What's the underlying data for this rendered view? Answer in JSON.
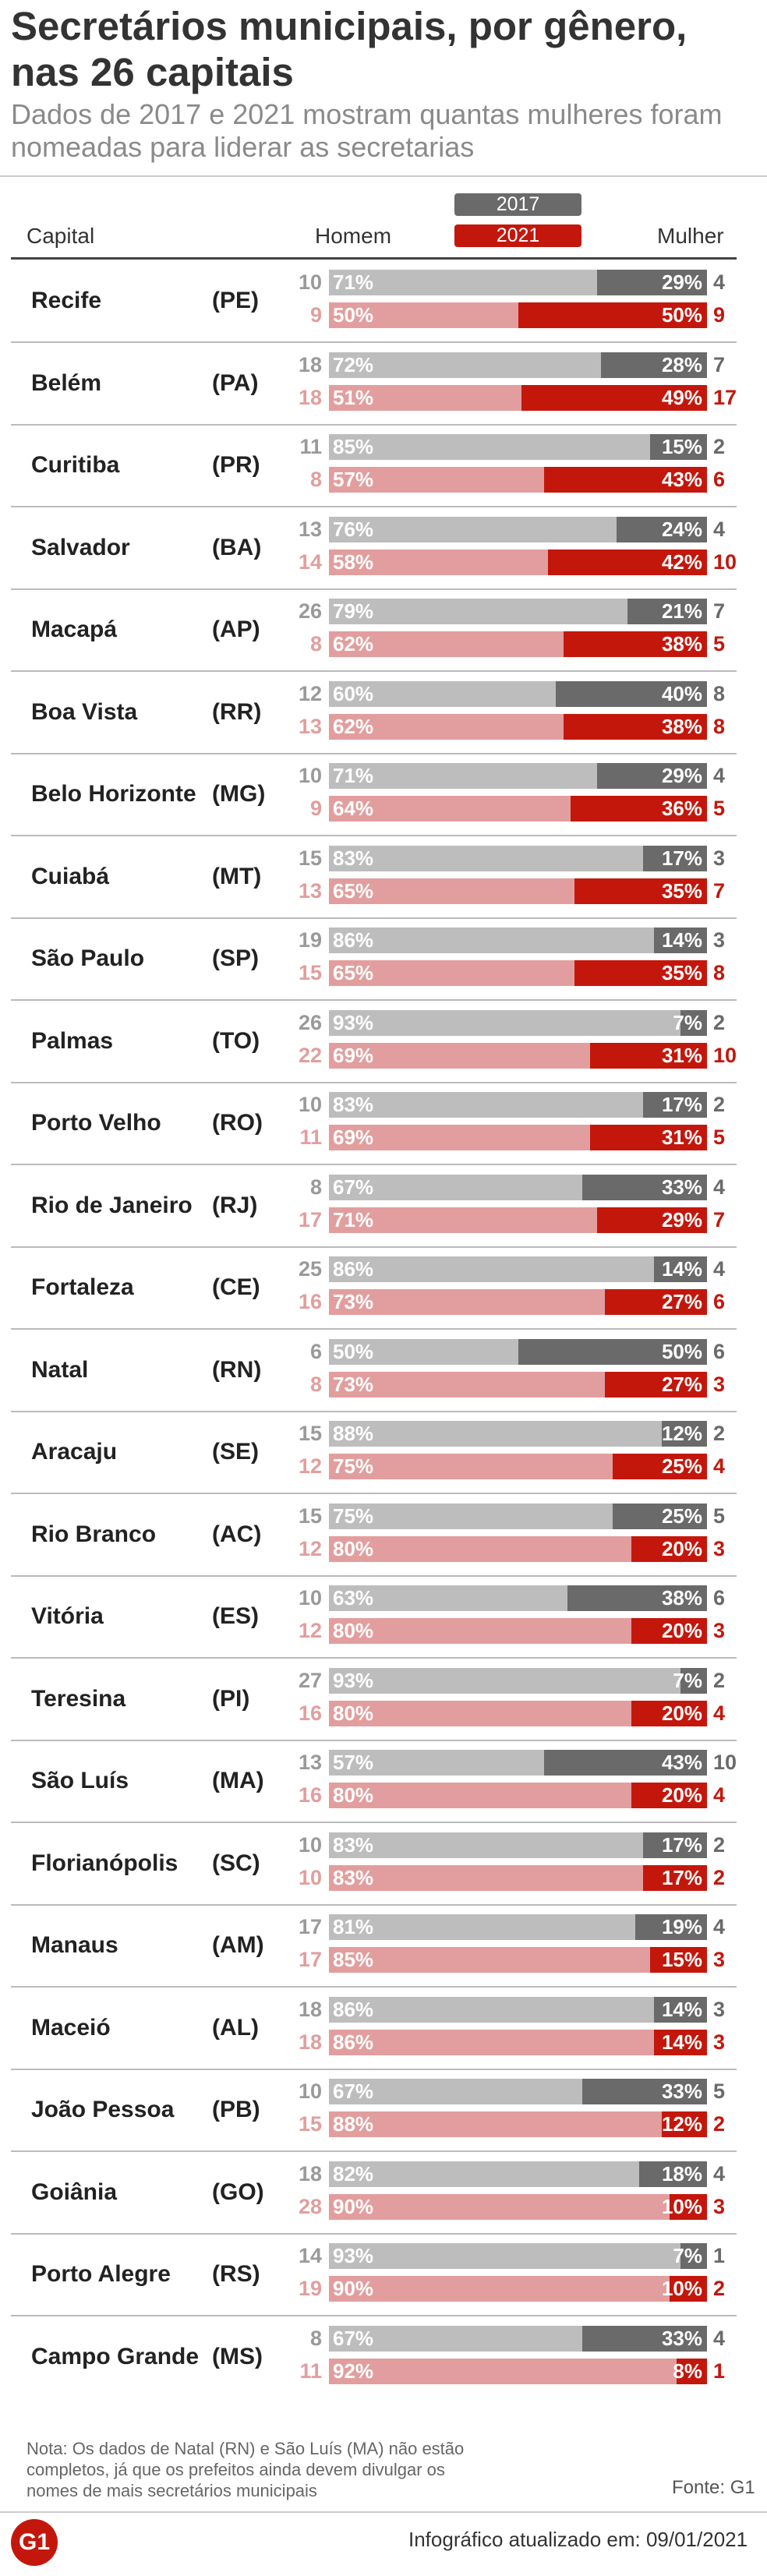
{
  "title": "Secretários municipais, por gênero, nas 26 capitais",
  "subtitle": "Dados de 2017 e 2021 mostram quantas mulheres foram nomeadas para liderar as secretarias",
  "header": {
    "capital": "Capital",
    "homem": "Homem",
    "mulher": "Mulher"
  },
  "colors": {
    "men_2017": "#bdbdbd",
    "women_2017": "#6a6a6a",
    "men_2021": "#e29e9e",
    "women_2021": "#c4170c",
    "count_2017": "#9a9a9a",
    "pct_2017_women": "#ffffff",
    "pct_2017_men": "#ffffff"
  },
  "chart_data": {
    "type": "bar",
    "orientation": "horizontal",
    "stacked": true,
    "percent": true,
    "legend": [
      "2017",
      "2021"
    ],
    "series": [
      {
        "name": "Homem"
      },
      {
        "name": "Mulher"
      }
    ],
    "rows": [
      {
        "capital": "Recife",
        "uf": "(PE)",
        "y2017": {
          "m": 10,
          "mp": "71%",
          "w": 4,
          "wp": "29%"
        },
        "y2021": {
          "m": 9,
          "mp": "50%",
          "w": 9,
          "wp": "50%"
        }
      },
      {
        "capital": "Belém",
        "uf": "(PA)",
        "y2017": {
          "m": 18,
          "mp": "72%",
          "w": 7,
          "wp": "28%"
        },
        "y2021": {
          "m": 18,
          "mp": "51%",
          "w": 17,
          "wp": "49%"
        }
      },
      {
        "capital": "Curitiba",
        "uf": "(PR)",
        "y2017": {
          "m": 11,
          "mp": "85%",
          "w": 2,
          "wp": "15%"
        },
        "y2021": {
          "m": 8,
          "mp": "57%",
          "w": 6,
          "wp": "43%"
        }
      },
      {
        "capital": "Salvador",
        "uf": "(BA)",
        "y2017": {
          "m": 13,
          "mp": "76%",
          "w": 4,
          "wp": "24%"
        },
        "y2021": {
          "m": 14,
          "mp": "58%",
          "w": 10,
          "wp": "42%"
        }
      },
      {
        "capital": "Macapá",
        "uf": "(AP)",
        "y2017": {
          "m": 26,
          "mp": "79%",
          "w": 7,
          "wp": "21%"
        },
        "y2021": {
          "m": 8,
          "mp": "62%",
          "w": 5,
          "wp": "38%"
        }
      },
      {
        "capital": "Boa Vista",
        "uf": "(RR)",
        "y2017": {
          "m": 12,
          "mp": "60%",
          "w": 8,
          "wp": "40%"
        },
        "y2021": {
          "m": 13,
          "mp": "62%",
          "w": 8,
          "wp": "38%"
        }
      },
      {
        "capital": "Belo Horizonte",
        "uf": "(MG)",
        "y2017": {
          "m": 10,
          "mp": "71%",
          "w": 4,
          "wp": "29%"
        },
        "y2021": {
          "m": 9,
          "mp": "64%",
          "w": 5,
          "wp": "36%"
        }
      },
      {
        "capital": "Cuiabá",
        "uf": "(MT)",
        "y2017": {
          "m": 15,
          "mp": "83%",
          "w": 3,
          "wp": "17%"
        },
        "y2021": {
          "m": 13,
          "mp": "65%",
          "w": 7,
          "wp": "35%"
        }
      },
      {
        "capital": "São Paulo",
        "uf": "(SP)",
        "y2017": {
          "m": 19,
          "mp": "86%",
          "w": 3,
          "wp": "14%"
        },
        "y2021": {
          "m": 15,
          "mp": "65%",
          "w": 8,
          "wp": "35%"
        }
      },
      {
        "capital": "Palmas",
        "uf": "(TO)",
        "y2017": {
          "m": 26,
          "mp": "93%",
          "w": 2,
          "wp": "7%"
        },
        "y2021": {
          "m": 22,
          "mp": "69%",
          "w": 10,
          "wp": "31%"
        }
      },
      {
        "capital": "Porto Velho",
        "uf": "(RO)",
        "y2017": {
          "m": 10,
          "mp": "83%",
          "w": 2,
          "wp": "17%"
        },
        "y2021": {
          "m": 11,
          "mp": "69%",
          "w": 5,
          "wp": "31%"
        }
      },
      {
        "capital": "Rio de Janeiro",
        "uf": "(RJ)",
        "y2017": {
          "m": 8,
          "mp": "67%",
          "w": 4,
          "wp": "33%"
        },
        "y2021": {
          "m": 17,
          "mp": "71%",
          "w": 7,
          "wp": "29%"
        }
      },
      {
        "capital": "Fortaleza",
        "uf": "(CE)",
        "y2017": {
          "m": 25,
          "mp": "86%",
          "w": 4,
          "wp": "14%"
        },
        "y2021": {
          "m": 16,
          "mp": "73%",
          "w": 6,
          "wp": "27%"
        }
      },
      {
        "capital": "Natal",
        "uf": "(RN)",
        "y2017": {
          "m": 6,
          "mp": "50%",
          "w": 6,
          "wp": "50%"
        },
        "y2021": {
          "m": 8,
          "mp": "73%",
          "w": 3,
          "wp": "27%"
        }
      },
      {
        "capital": "Aracaju",
        "uf": "(SE)",
        "y2017": {
          "m": 15,
          "mp": "88%",
          "w": 2,
          "wp": "12%"
        },
        "y2021": {
          "m": 12,
          "mp": "75%",
          "w": 4,
          "wp": "25%"
        }
      },
      {
        "capital": "Rio Branco",
        "uf": "(AC)",
        "y2017": {
          "m": 15,
          "mp": "75%",
          "w": 5,
          "wp": "25%"
        },
        "y2021": {
          "m": 12,
          "mp": "80%",
          "w": 3,
          "wp": "20%"
        }
      },
      {
        "capital": "Vitória",
        "uf": "(ES)",
        "y2017": {
          "m": 10,
          "mp": "63%",
          "w": 6,
          "wp": "38%"
        },
        "y2021": {
          "m": 12,
          "mp": "80%",
          "w": 3,
          "wp": "20%"
        }
      },
      {
        "capital": "Teresina",
        "uf": "(PI)",
        "y2017": {
          "m": 27,
          "mp": "93%",
          "w": 2,
          "wp": "7%"
        },
        "y2021": {
          "m": 16,
          "mp": "80%",
          "w": 4,
          "wp": "20%"
        }
      },
      {
        "capital": "São Luís",
        "uf": "(MA)",
        "y2017": {
          "m": 13,
          "mp": "57%",
          "w": 10,
          "wp": "43%"
        },
        "y2021": {
          "m": 16,
          "mp": "80%",
          "w": 4,
          "wp": "20%"
        }
      },
      {
        "capital": "Florianópolis",
        "uf": "(SC)",
        "y2017": {
          "m": 10,
          "mp": "83%",
          "w": 2,
          "wp": "17%"
        },
        "y2021": {
          "m": 10,
          "mp": "83%",
          "w": 2,
          "wp": "17%"
        }
      },
      {
        "capital": "Manaus",
        "uf": "(AM)",
        "y2017": {
          "m": 17,
          "mp": "81%",
          "w": 4,
          "wp": "19%"
        },
        "y2021": {
          "m": 17,
          "mp": "85%",
          "w": 3,
          "wp": "15%"
        }
      },
      {
        "capital": "Maceió",
        "uf": "(AL)",
        "y2017": {
          "m": 18,
          "mp": "86%",
          "w": 3,
          "wp": "14%"
        },
        "y2021": {
          "m": 18,
          "mp": "86%",
          "w": 3,
          "wp": "14%"
        }
      },
      {
        "capital": "João Pessoa",
        "uf": "(PB)",
        "y2017": {
          "m": 10,
          "mp": "67%",
          "w": 5,
          "wp": "33%"
        },
        "y2021": {
          "m": 15,
          "mp": "88%",
          "w": 2,
          "wp": "12%"
        }
      },
      {
        "capital": "Goiânia",
        "uf": "(GO)",
        "y2017": {
          "m": 18,
          "mp": "82%",
          "w": 4,
          "wp": "18%"
        },
        "y2021": {
          "m": 28,
          "mp": "90%",
          "w": 3,
          "wp": "10%"
        }
      },
      {
        "capital": "Porto Alegre",
        "uf": "(RS)",
        "y2017": {
          "m": 14,
          "mp": "93%",
          "w": 1,
          "wp": "7%"
        },
        "y2021": {
          "m": 19,
          "mp": "90%",
          "w": 2,
          "wp": "10%"
        }
      },
      {
        "capital": "Campo Grande",
        "uf": "(MS)",
        "y2017": {
          "m": 8,
          "mp": "67%",
          "w": 4,
          "wp": "33%"
        },
        "y2021": {
          "m": 11,
          "mp": "92%",
          "w": 1,
          "wp": "8%"
        }
      }
    ]
  },
  "footer": {
    "note": "Nota: Os dados de Natal (RN) e São Luís (MA) não estão completos, já que os prefeitos ainda devem divulgar os nomes de mais secretários municipais",
    "source": "Fonte: G1",
    "logo": "G1",
    "updated": "Infográfico atualizado em: 09/01/2021"
  }
}
